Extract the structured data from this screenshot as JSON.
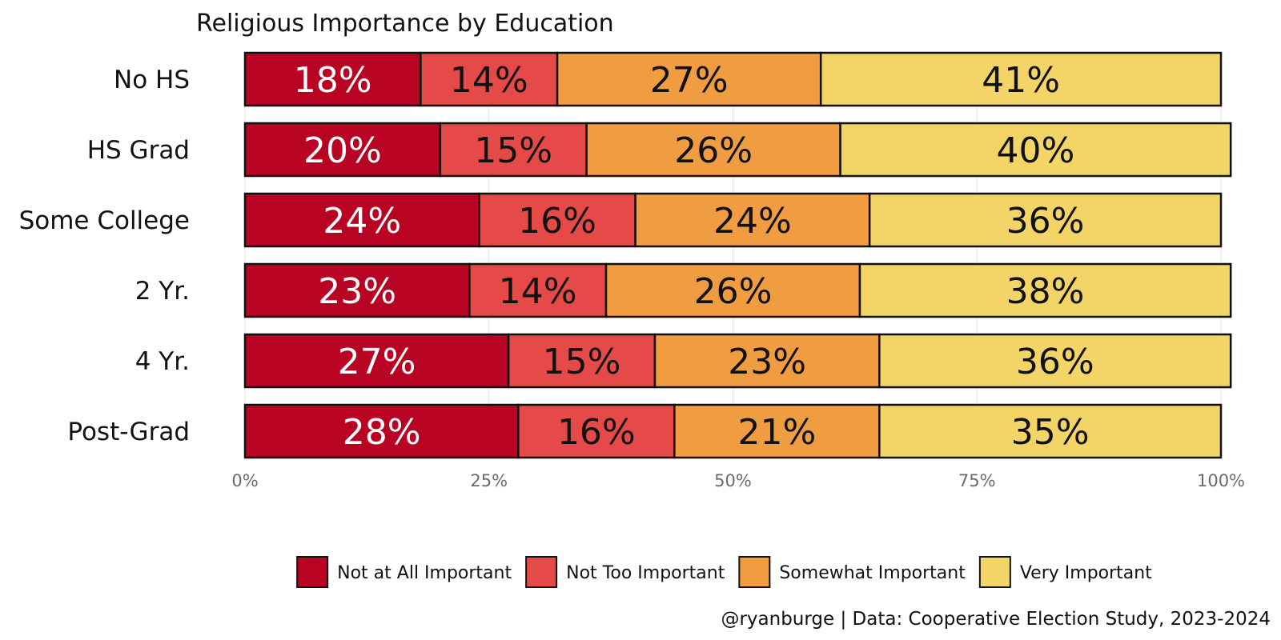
{
  "chart_data": {
    "type": "bar",
    "orientation": "horizontal",
    "stacked": true,
    "title": "Religious Importance by Education",
    "categories": [
      "No HS",
      "HS Grad",
      "Some College",
      "2 Yr.",
      "4 Yr.",
      "Post-Grad"
    ],
    "series": [
      {
        "name": "Not at All Important",
        "color": "#b80322",
        "label_color": "#ffffff",
        "values": [
          18,
          20,
          24,
          23,
          27,
          28
        ],
        "labels": [
          "18%",
          "20%",
          "24%",
          "23%",
          "27%",
          "28%"
        ]
      },
      {
        "name": "Not Too Important",
        "color": "#e54a48",
        "label_color": "#111111",
        "values": [
          14,
          15,
          16,
          14,
          15,
          16
        ],
        "labels": [
          "14%",
          "15%",
          "16%",
          "14%",
          "15%",
          "16%"
        ]
      },
      {
        "name": "Somewhat Important",
        "color": "#f09d42",
        "label_color": "#111111",
        "values": [
          27,
          26,
          24,
          26,
          23,
          21
        ],
        "labels": [
          "27%",
          "26%",
          "24%",
          "26%",
          "23%",
          "21%"
        ]
      },
      {
        "name": "Very Important",
        "color": "#f3d466",
        "label_color": "#111111",
        "values": [
          41,
          40,
          36,
          38,
          36,
          35
        ],
        "labels": [
          "41%",
          "40%",
          "36%",
          "38%",
          "36%",
          "35%"
        ]
      }
    ],
    "xlim": [
      0,
      100
    ],
    "xticks": [
      0,
      25,
      50,
      75,
      100
    ],
    "xtick_labels": [
      "0%",
      "25%",
      "50%",
      "75%",
      "100%"
    ],
    "xlabel": "",
    "ylabel": "",
    "grid": true,
    "legend_position": "bottom",
    "caption": "@ryanburge | Data: Cooperative Election Study, 2023-2024"
  }
}
